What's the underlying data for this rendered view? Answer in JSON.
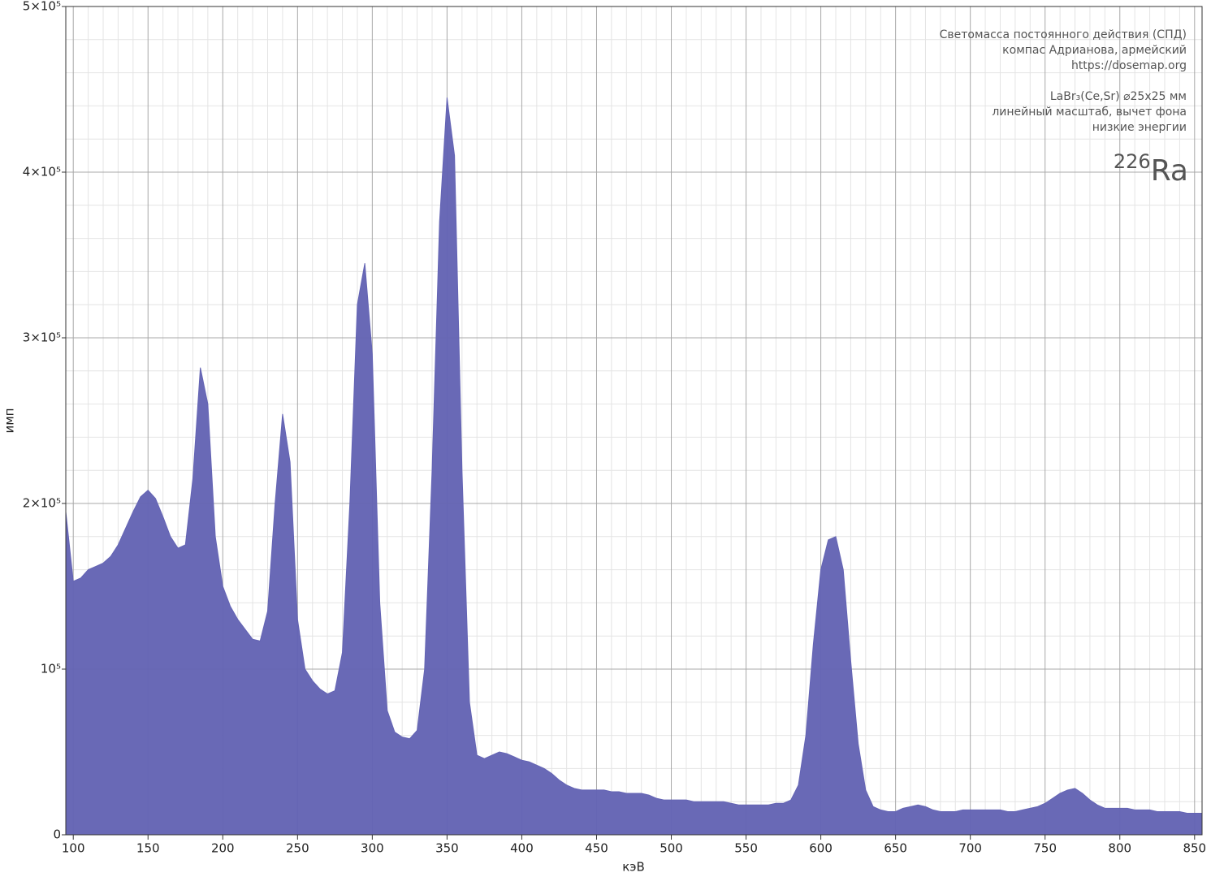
{
  "chart_data": {
    "type": "area",
    "x_label": "кэВ",
    "y_label": "имп",
    "annotations": [
      "Светомасса постоянного действия (СПД)",
      "компас Адрианова, армейский",
      "https://dosemap.org",
      "LaBr₃(Ce,Sr) ⌀25x25 мм",
      "линейный масштаб, вычет фона",
      "низкие энергии"
    ],
    "isotope": {
      "mass": "226",
      "symbol": "Ra"
    },
    "color": "#6464b4",
    "grid": true,
    "xlim": [
      95,
      855
    ],
    "ylim": [
      0,
      500000
    ],
    "xticks": [
      100,
      150,
      200,
      250,
      300,
      350,
      400,
      450,
      500,
      550,
      600,
      650,
      700,
      750,
      800,
      850
    ],
    "xminorticks": [
      110,
      120,
      130,
      140,
      160,
      170,
      180,
      190,
      210,
      220,
      230,
      240,
      260,
      270,
      280,
      290,
      310,
      320,
      330,
      340,
      360,
      370,
      380,
      390,
      410,
      420,
      430,
      440,
      460,
      470,
      480,
      490,
      510,
      520,
      530,
      540,
      560,
      570,
      580,
      590,
      610,
      620,
      630,
      640,
      660,
      670,
      680,
      690,
      710,
      720,
      730,
      740,
      760,
      770,
      780,
      790,
      810,
      820,
      830,
      840
    ],
    "yticks": [
      0,
      {
        "value": 100000,
        "label": "10⁵"
      },
      {
        "value": 200000,
        "label": "2×10⁵"
      },
      {
        "value": 300000,
        "label": "3×10⁵"
      },
      {
        "value": 400000,
        "label": "4×10⁵"
      },
      {
        "value": 500000,
        "label": "5×10⁵"
      }
    ],
    "yminorticks": [
      20000,
      40000,
      60000,
      80000,
      120000,
      140000,
      160000,
      180000,
      220000,
      240000,
      260000,
      280000,
      320000,
      340000,
      360000,
      380000,
      420000,
      440000,
      460000,
      480000
    ],
    "x": [
      95,
      100,
      105,
      110,
      115,
      120,
      125,
      130,
      135,
      140,
      145,
      150,
      155,
      160,
      165,
      170,
      175,
      180,
      185,
      190,
      195,
      200,
      205,
      210,
      215,
      220,
      225,
      230,
      235,
      240,
      245,
      250,
      255,
      260,
      265,
      270,
      275,
      280,
      285,
      290,
      295,
      300,
      305,
      310,
      315,
      320,
      325,
      330,
      335,
      340,
      345,
      350,
      355,
      360,
      365,
      370,
      375,
      380,
      385,
      390,
      395,
      400,
      405,
      410,
      415,
      420,
      425,
      430,
      435,
      440,
      445,
      450,
      455,
      460,
      465,
      470,
      475,
      480,
      485,
      490,
      495,
      500,
      505,
      510,
      515,
      520,
      525,
      530,
      535,
      540,
      545,
      550,
      555,
      560,
      565,
      570,
      575,
      580,
      585,
      590,
      595,
      600,
      605,
      610,
      615,
      620,
      625,
      630,
      635,
      640,
      645,
      650,
      655,
      660,
      665,
      670,
      675,
      680,
      685,
      690,
      695,
      700,
      705,
      710,
      715,
      720,
      725,
      730,
      735,
      740,
      745,
      750,
      755,
      760,
      765,
      770,
      775,
      780,
      785,
      790,
      795,
      800,
      805,
      810,
      815,
      820,
      825,
      830,
      835,
      840,
      845,
      850,
      855
    ],
    "values": [
      195000,
      153000,
      155000,
      160000,
      162000,
      164000,
      168000,
      175000,
      185000,
      195000,
      204000,
      208000,
      203000,
      192000,
      180000,
      173000,
      175000,
      215000,
      282000,
      260000,
      180000,
      150000,
      138000,
      130000,
      124000,
      118000,
      117000,
      135000,
      200000,
      254000,
      225000,
      130000,
      100000,
      93000,
      88000,
      85000,
      87000,
      110000,
      200000,
      320000,
      345000,
      290000,
      140000,
      75000,
      62000,
      59000,
      58000,
      63000,
      100000,
      220000,
      370000,
      445000,
      410000,
      220000,
      80000,
      48000,
      46000,
      48000,
      50000,
      49000,
      47000,
      45000,
      44000,
      42000,
      40000,
      37000,
      33000,
      30000,
      28000,
      27000,
      27000,
      27000,
      27000,
      26000,
      26000,
      25000,
      25000,
      25000,
      24000,
      22000,
      21000,
      21000,
      21000,
      21000,
      20000,
      20000,
      20000,
      20000,
      20000,
      19000,
      18000,
      18000,
      18000,
      18000,
      18000,
      19000,
      19000,
      21000,
      30000,
      60000,
      115000,
      160000,
      178000,
      180000,
      160000,
      105000,
      55000,
      27000,
      17000,
      15000,
      14000,
      14000,
      16000,
      17000,
      18000,
      17000,
      15000,
      14000,
      14000,
      14000,
      15000,
      15000,
      15000,
      15000,
      15000,
      15000,
      14000,
      14000,
      15000,
      16000,
      17000,
      19000,
      22000,
      25000,
      27000,
      28000,
      25000,
      21000,
      18000,
      16000,
      16000,
      16000,
      16000,
      15000,
      15000,
      15000,
      14000,
      14000,
      14000,
      14000,
      13000,
      13000,
      13000
    ]
  }
}
